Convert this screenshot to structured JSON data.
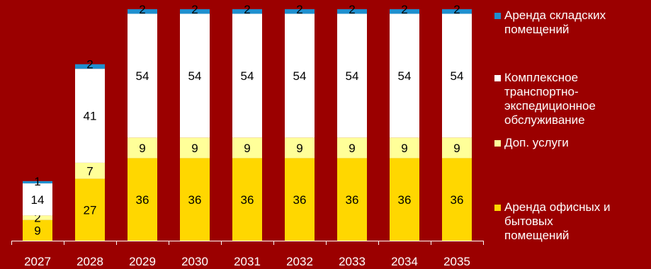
{
  "chart_data": {
    "type": "bar",
    "stacked": true,
    "categories": [
      "2027",
      "2028",
      "2029",
      "2030",
      "2031",
      "2032",
      "2033",
      "2034",
      "2035"
    ],
    "series": [
      {
        "name": "Аренда офисных и бытовых помещений",
        "label": "Аренда офисных и\nбытовых\nпомещений",
        "color": "#ffd700",
        "values": [
          9,
          27,
          36,
          36,
          36,
          36,
          36,
          36,
          36
        ]
      },
      {
        "name": "Доп. услуги",
        "label": "Доп. услуги",
        "color": "#ffff99",
        "values": [
          2,
          7,
          9,
          9,
          9,
          9,
          9,
          9,
          9
        ]
      },
      {
        "name": "Комплексное транспортно-экспедиционное обслуживание",
        "label": "Комплексное\nтранспортно-\nэкспедиционное\nобслуживание",
        "color": "#ffffff",
        "values": [
          14,
          41,
          54,
          54,
          54,
          54,
          54,
          54,
          54
        ]
      },
      {
        "name": "Аренда складских помещений",
        "label": "Аренда складских\nпомещений",
        "color": "#1f8fcf",
        "values": [
          1,
          2,
          2,
          2,
          2,
          2,
          2,
          2,
          2
        ]
      }
    ],
    "legend_position": "right",
    "grid": false,
    "ylim": [
      0,
      101
    ]
  }
}
